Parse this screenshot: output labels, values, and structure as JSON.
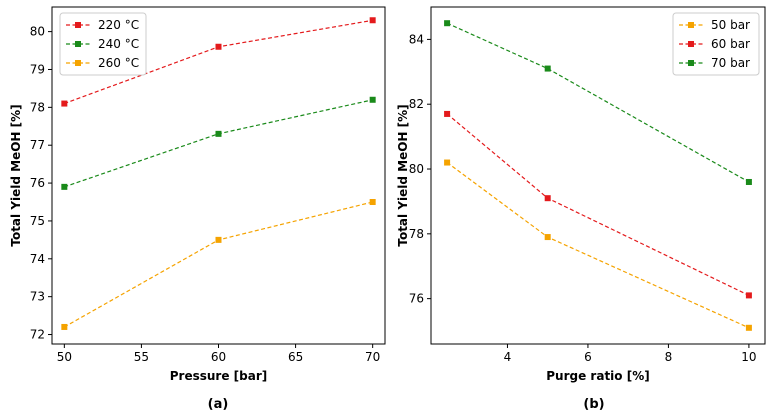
{
  "chart_data": [
    {
      "type": "line",
      "panel_label": "(a)",
      "xlabel": "Pressure [bar]",
      "ylabel": "Total Yield MeOH [%]",
      "xlim": [
        49.2,
        70.8
      ],
      "ylim": [
        71.75,
        80.65
      ],
      "xticks": [
        50,
        55,
        60,
        65,
        70
      ],
      "yticks": [
        72,
        73,
        74,
        75,
        76,
        77,
        78,
        79,
        80
      ],
      "x": [
        50,
        60,
        70
      ],
      "legend_position": "top-left",
      "series": [
        {
          "name": "220 °C",
          "color": "#e41a1c",
          "values": [
            78.1,
            79.6,
            80.3
          ]
        },
        {
          "name": "240 °C",
          "color": "#1a8a1a",
          "values": [
            75.9,
            77.3,
            78.2
          ]
        },
        {
          "name": "260 °C",
          "color": "#f5a300",
          "values": [
            72.2,
            74.5,
            75.5
          ]
        }
      ]
    },
    {
      "type": "line",
      "panel_label": "(b)",
      "xlabel": "Purge ratio [%]",
      "ylabel": "Total Yield MeOH [%]",
      "xlim": [
        2.1,
        10.4
      ],
      "ylim": [
        74.6,
        85.0
      ],
      "xticks": [
        4,
        6,
        8,
        10
      ],
      "yticks": [
        76,
        78,
        80,
        82,
        84
      ],
      "x": [
        2.5,
        5,
        10
      ],
      "legend_position": "top-right",
      "series": [
        {
          "name": "50 bar",
          "color": "#f5a300",
          "values": [
            80.2,
            77.9,
            75.1
          ]
        },
        {
          "name": "60 bar",
          "color": "#e41a1c",
          "values": [
            81.7,
            79.1,
            76.1
          ]
        },
        {
          "name": "70 bar",
          "color": "#1a8a1a",
          "values": [
            84.5,
            83.1,
            79.6
          ]
        }
      ]
    }
  ]
}
